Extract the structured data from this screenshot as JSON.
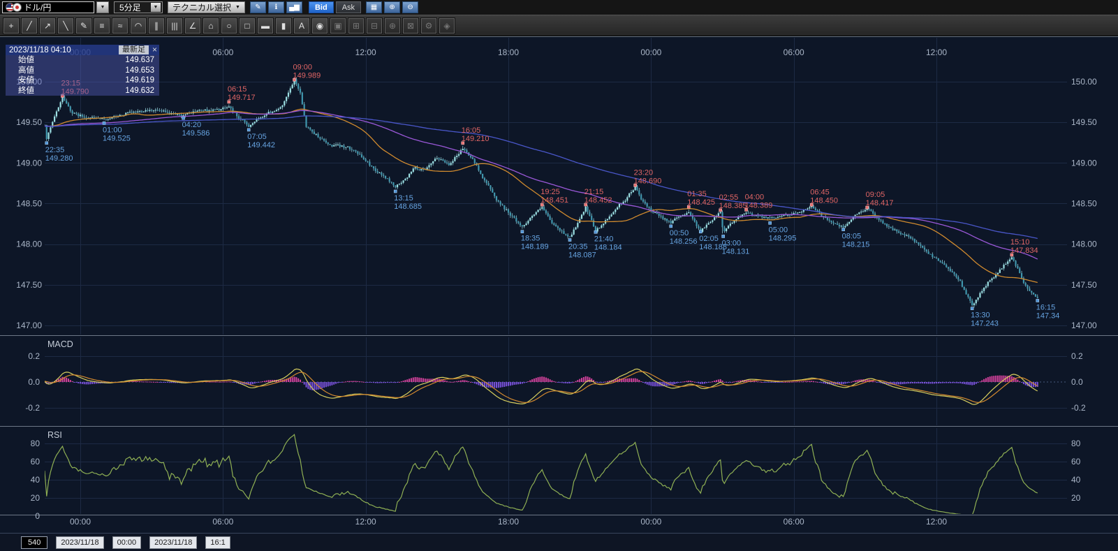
{
  "toolbar_top": {
    "pair_label": "ドル/円",
    "pair_dropdown_icon": "▼",
    "timeframe_value": "5分足",
    "timeframe_dropdown_icon": "▼",
    "technical_label": "テクニカル選択",
    "technical_dropdown_icon": "▼",
    "icon_buttons_left": [
      {
        "name": "draw-mode-button",
        "glyph": "✎"
      },
      {
        "name": "info-button",
        "glyph": "ℹ"
      },
      {
        "name": "chart-type-button",
        "glyph": "▄▆"
      }
    ],
    "bid_label": "Bid",
    "ask_label": "Ask",
    "icon_buttons_right": [
      {
        "name": "multi-chart-button",
        "glyph": "▦"
      },
      {
        "name": "zoom-in-button",
        "glyph": "⊕"
      },
      {
        "name": "zoom-out-button",
        "glyph": "⊖"
      }
    ]
  },
  "toolbar_draw": {
    "tools": [
      {
        "name": "crosshair-tool",
        "glyph": "+",
        "enabled": true
      },
      {
        "name": "trend-line-tool",
        "glyph": "╱",
        "enabled": true
      },
      {
        "name": "ray-line-tool",
        "glyph": "↗",
        "enabled": true
      },
      {
        "name": "descending-line-tool",
        "glyph": "╲",
        "enabled": true
      },
      {
        "name": "freehand-draw-tool",
        "glyph": "✎",
        "enabled": true
      },
      {
        "name": "horizontal-levels-tool",
        "glyph": "≡",
        "enabled": true
      },
      {
        "name": "fibonacci-tool",
        "glyph": "≈",
        "enabled": true
      },
      {
        "name": "arc-tool",
        "glyph": "◠",
        "enabled": true
      },
      {
        "name": "parallel-channel-tool",
        "glyph": "∥",
        "enabled": true
      },
      {
        "name": "vertical-hatch-tool",
        "glyph": "|||",
        "enabled": true
      },
      {
        "name": "angle-line-tool",
        "glyph": "∠",
        "enabled": true
      },
      {
        "name": "polygon-tool",
        "glyph": "⌂",
        "enabled": true
      },
      {
        "name": "ellipse-tool",
        "glyph": "○",
        "enabled": true
      },
      {
        "name": "rectangle-tool",
        "glyph": "□",
        "enabled": true
      },
      {
        "name": "horizontal-bar-tool",
        "glyph": "▬",
        "enabled": true
      },
      {
        "name": "vertical-bar-tool",
        "glyph": "▮",
        "enabled": true
      },
      {
        "name": "text-tool",
        "glyph": "A",
        "enabled": true
      },
      {
        "name": "icon-stamp-tool",
        "glyph": "◉",
        "enabled": true
      },
      {
        "name": "copy-object-button",
        "glyph": "▣",
        "enabled": false
      },
      {
        "name": "paste-object-button",
        "glyph": "⊞",
        "enabled": false
      },
      {
        "name": "delete-object-button",
        "glyph": "⊟",
        "enabled": false
      },
      {
        "name": "object-zoom-button",
        "glyph": "⊕",
        "enabled": false
      },
      {
        "name": "eraser-button",
        "glyph": "⊠",
        "enabled": false
      },
      {
        "name": "settings-wrench-button",
        "glyph": "⚙",
        "enabled": false
      },
      {
        "name": "label-tag-button",
        "glyph": "◈",
        "enabled": false
      }
    ]
  },
  "info_box": {
    "datetime": "2023/11/18 04:10",
    "badge": "最新足",
    "close_icon": "×",
    "rows": [
      {
        "label": "始値",
        "value": "149.637"
      },
      {
        "label": "高値",
        "value": "149.653"
      },
      {
        "label": "安値",
        "value": "149.619"
      },
      {
        "label": "終値",
        "value": "149.632"
      }
    ]
  },
  "chart_data": {
    "type": "candlestick",
    "instrument": "ドル/円",
    "timeframe": "5分足",
    "price_axis": {
      "labels": [
        "150.00",
        "149.50",
        "149.00",
        "148.50",
        "148.00",
        "147.50",
        "147.00"
      ],
      "values": [
        150.0,
        149.5,
        149.0,
        148.5,
        148.0,
        147.5,
        147.0
      ],
      "range": [
        146.85,
        150.35
      ]
    },
    "time_axis": {
      "tick_minutes": [
        90,
        450,
        810,
        1170,
        1530,
        1890,
        2250
      ],
      "labels": [
        "00:00",
        "06:00",
        "12:00",
        "18:00",
        "00:00",
        "06:00",
        "12:00"
      ]
    },
    "anchors": [
      [
        -720,
        149.3
      ],
      [
        -480,
        149.55
      ],
      [
        -240,
        149.4
      ],
      [
        -60,
        149.5
      ],
      [
        0,
        149.46
      ],
      [
        5,
        149.28
      ],
      [
        45,
        149.79
      ],
      [
        70,
        149.62
      ],
      [
        90,
        149.6
      ],
      [
        150,
        149.525
      ],
      [
        210,
        149.64
      ],
      [
        300,
        149.62
      ],
      [
        350,
        149.586
      ],
      [
        420,
        149.66
      ],
      [
        465,
        149.717
      ],
      [
        490,
        149.55
      ],
      [
        515,
        149.442
      ],
      [
        560,
        149.62
      ],
      [
        600,
        149.68
      ],
      [
        630,
        149.989
      ],
      [
        645,
        149.85
      ],
      [
        660,
        149.45
      ],
      [
        690,
        149.35
      ],
      [
        720,
        149.22
      ],
      [
        780,
        149.18
      ],
      [
        810,
        149.05
      ],
      [
        840,
        148.88
      ],
      [
        885,
        148.685
      ],
      [
        915,
        148.82
      ],
      [
        930,
        148.95
      ],
      [
        960,
        148.9
      ],
      [
        990,
        149.05
      ],
      [
        1020,
        149.0
      ],
      [
        1055,
        149.21
      ],
      [
        1080,
        149.05
      ],
      [
        1100,
        148.85
      ],
      [
        1140,
        148.55
      ],
      [
        1170,
        148.4
      ],
      [
        1205,
        148.189
      ],
      [
        1230,
        148.32
      ],
      [
        1255,
        148.451
      ],
      [
        1280,
        148.28
      ],
      [
        1305,
        148.17
      ],
      [
        1325,
        148.087
      ],
      [
        1345,
        148.25
      ],
      [
        1365,
        148.452
      ],
      [
        1380,
        148.3
      ],
      [
        1390,
        148.184
      ],
      [
        1420,
        148.32
      ],
      [
        1440,
        148.42
      ],
      [
        1465,
        148.52
      ],
      [
        1490,
        148.69
      ],
      [
        1510,
        148.52
      ],
      [
        1530,
        148.42
      ],
      [
        1555,
        148.33
      ],
      [
        1580,
        148.256
      ],
      [
        1605,
        148.35
      ],
      [
        1625,
        148.425
      ],
      [
        1640,
        148.3
      ],
      [
        1655,
        148.188
      ],
      [
        1680,
        148.28
      ],
      [
        1705,
        148.385
      ],
      [
        1712,
        148.131
      ],
      [
        1730,
        148.25
      ],
      [
        1750,
        148.33
      ],
      [
        1770,
        148.389
      ],
      [
        1800,
        148.33
      ],
      [
        1830,
        148.295
      ],
      [
        1860,
        148.36
      ],
      [
        1890,
        148.4
      ],
      [
        1935,
        148.45
      ],
      [
        1960,
        148.36
      ],
      [
        1990,
        148.28
      ],
      [
        2015,
        148.215
      ],
      [
        2045,
        148.33
      ],
      [
        2075,
        148.417
      ],
      [
        2100,
        148.33
      ],
      [
        2130,
        148.22
      ],
      [
        2160,
        148.12
      ],
      [
        2190,
        148.05
      ],
      [
        2220,
        147.95
      ],
      [
        2250,
        147.85
      ],
      [
        2280,
        147.7
      ],
      [
        2310,
        147.52
      ],
      [
        2340,
        147.243
      ],
      [
        2360,
        147.4
      ],
      [
        2380,
        147.52
      ],
      [
        2410,
        147.65
      ],
      [
        2440,
        147.834
      ],
      [
        2455,
        147.7
      ],
      [
        2470,
        147.55
      ],
      [
        2485,
        147.45
      ],
      [
        2505,
        147.34
      ]
    ],
    "annotations": {
      "highs": [
        {
          "t": 45,
          "time": "23:15",
          "price": "149.790"
        },
        {
          "t": 465,
          "time": "06:15",
          "price": "149.717"
        },
        {
          "t": 630,
          "time": "09:00",
          "price": "149.989"
        },
        {
          "t": 1055,
          "time": "16:05",
          "price": "149.210"
        },
        {
          "t": 1255,
          "time": "19:25",
          "price": "148.451"
        },
        {
          "t": 1365,
          "time": "21:15",
          "price": "148.452"
        },
        {
          "t": 1490,
          "time": "23:20",
          "price": "148.690"
        },
        {
          "t": 1625,
          "time": "01:35",
          "price": "148.425"
        },
        {
          "t": 1705,
          "time": "02:55",
          "price": "148.385"
        },
        {
          "t": 1770,
          "time": "04:00",
          "price": "148.389"
        },
        {
          "t": 1935,
          "time": "06:45",
          "price": "148.450"
        },
        {
          "t": 2075,
          "time": "09:05",
          "price": "148.417"
        },
        {
          "t": 2440,
          "time": "15:10",
          "price": "147.834"
        }
      ],
      "lows": [
        {
          "t": 5,
          "time": "22:35",
          "price": "149.280"
        },
        {
          "t": 150,
          "time": "01:00",
          "price": "149.525"
        },
        {
          "t": 350,
          "time": "04:20",
          "price": "149.586"
        },
        {
          "t": 515,
          "time": "07:05",
          "price": "149.442"
        },
        {
          "t": 885,
          "time": "13:15",
          "price": "148.685"
        },
        {
          "t": 1205,
          "time": "18:35",
          "price": "148.189"
        },
        {
          "t": 1325,
          "time": "20:35",
          "price": "148.087"
        },
        {
          "t": 1390,
          "time": "21:40",
          "price": "148.184"
        },
        {
          "t": 1580,
          "time": "00:50",
          "price": "148.256"
        },
        {
          "t": 1655,
          "time": "02:05",
          "price": "148.188"
        },
        {
          "t": 1712,
          "time": "03:00",
          "price": "148.131"
        },
        {
          "t": 1830,
          "time": "05:00",
          "price": "148.295"
        },
        {
          "t": 2015,
          "time": "08:05",
          "price": "148.215"
        },
        {
          "t": 2340,
          "time": "13:30",
          "price": "147.243"
        },
        {
          "t": 2505,
          "time": "16:15",
          "price": "147.34"
        }
      ]
    },
    "moving_averages": [
      {
        "period": 40,
        "color": "#d08a2e"
      },
      {
        "period": 90,
        "color": "#9a58d8"
      },
      {
        "period": 180,
        "color": "#4956c8"
      }
    ],
    "indicators": {
      "macd": {
        "label": "MACD",
        "params": [
          12,
          26,
          9
        ],
        "ticks": [
          "0.2",
          "0.0",
          "-0.2"
        ],
        "tick_values": [
          0.2,
          0.0,
          -0.2
        ]
      },
      "rsi": {
        "label": "RSI",
        "period": 14,
        "ticks_left": [
          "80",
          "60",
          "40",
          "20",
          "0"
        ],
        "tick_values_left": [
          80,
          60,
          40,
          20,
          0
        ],
        "ticks_right": [
          "80",
          "60",
          "40",
          "20"
        ],
        "tick_values_right": [
          80,
          60,
          40,
          20
        ]
      }
    },
    "colors": {
      "background": "#0d1627",
      "grid": "#1d2a44",
      "axis_text": "#aab6c8",
      "panel_label": "#c6ced9",
      "candle_up": "#9bdfe2",
      "candle_down": "#3f96ad",
      "wick": "#8fcbd6",
      "annotation_high": "#e06565",
      "annotation_high_marker": "#e87070",
      "annotation_low": "#66a3e0",
      "annotation_low_marker": "#4f94d8",
      "macd_line": "#d6cd5e",
      "macd_signal": "#d2892f",
      "macd_hist_pos": "#d2419b",
      "macd_hist_neg": "#7a52dc",
      "rsi_line": "#8fb054",
      "zero_line": "#46597e",
      "panel_border": "#6c7786"
    }
  },
  "bottom_bar": {
    "items": [
      {
        "name": "bar-count-value",
        "text": "540",
        "style": "dark"
      },
      {
        "name": "range-start-date",
        "text": "2023/11/18",
        "style": "box"
      },
      {
        "name": "range-start-time",
        "text": "00:00",
        "style": "box"
      },
      {
        "name": "range-end-date",
        "text": "2023/11/18",
        "style": "box"
      },
      {
        "name": "range-end-time",
        "text": "16:1",
        "style": "box"
      }
    ]
  }
}
